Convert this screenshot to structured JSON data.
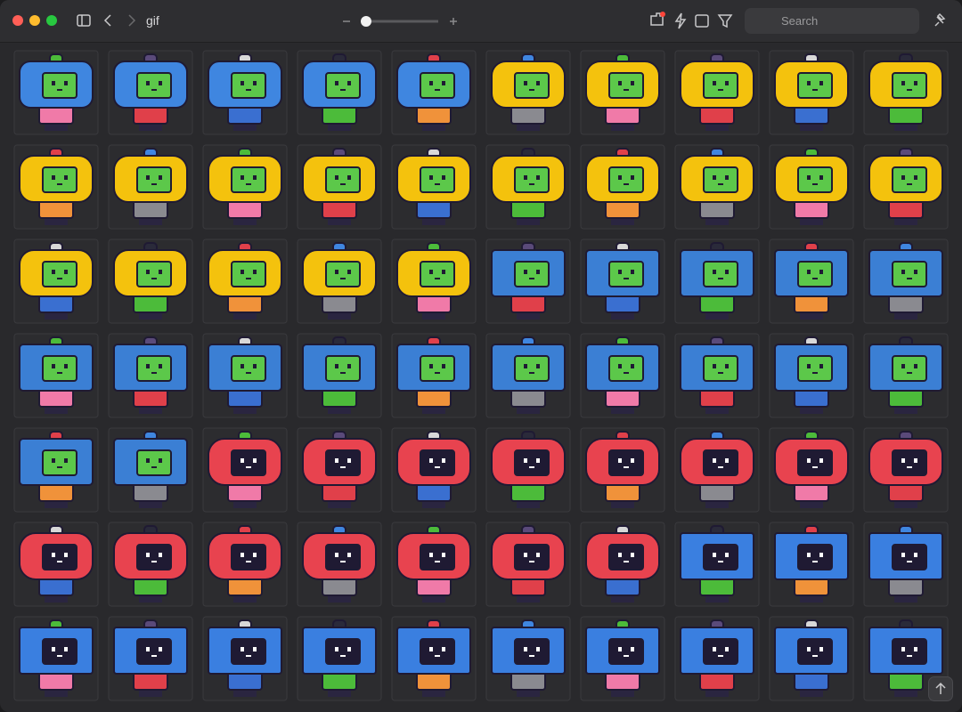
{
  "toolbar": {
    "folder": "gif",
    "search_placeholder": "Search"
  }
}
